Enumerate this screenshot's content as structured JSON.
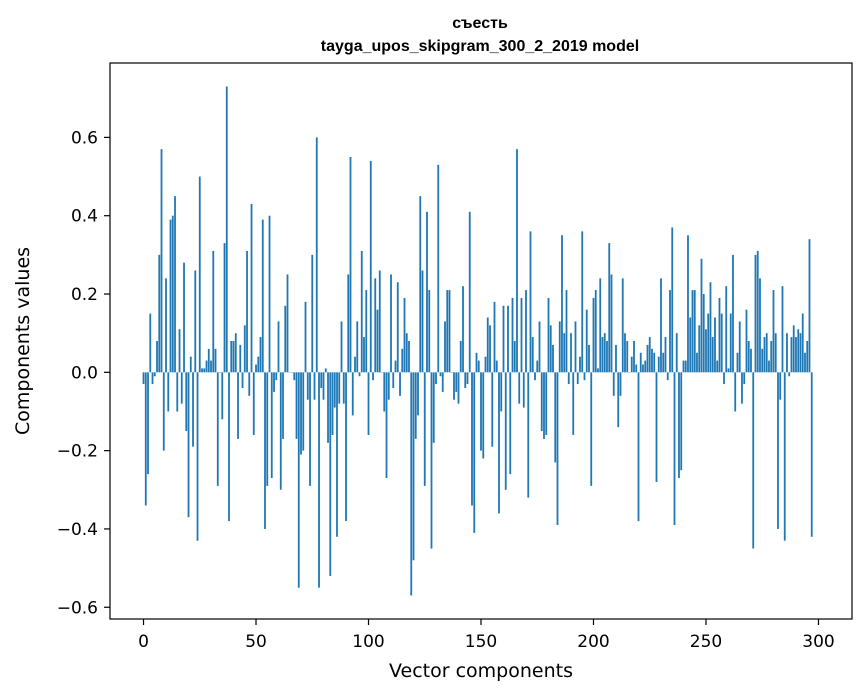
{
  "chart_data": {
    "type": "bar",
    "title": "съесть",
    "subtitle": "tayga_upos_skipgram_300_2_2019 model",
    "xlabel": "Vector components",
    "ylabel": "Components values",
    "xlim": [
      -14.9,
      314.9
    ],
    "ylim": [
      -0.63,
      0.79
    ],
    "xticks": [
      0,
      50,
      100,
      150,
      200,
      250,
      300
    ],
    "xtick_labels": [
      "0",
      "50",
      "100",
      "150",
      "200",
      "250",
      "300"
    ],
    "yticks": [
      -0.6,
      -0.4,
      -0.2,
      0.0,
      0.2,
      0.4,
      0.6
    ],
    "ytick_labels": [
      "−0.6",
      "−0.4",
      "−0.2",
      "0.0",
      "0.2",
      "0.4",
      "0.6"
    ],
    "grid": false,
    "bar_color": "#1f77b4",
    "values": [
      -0.03,
      -0.34,
      -0.26,
      0.15,
      -0.03,
      -0.01,
      0.08,
      0.3,
      0.57,
      -0.2,
      0.24,
      -0.1,
      0.39,
      0.4,
      0.45,
      -0.1,
      0.11,
      -0.08,
      0.28,
      -0.15,
      -0.37,
      0.04,
      -0.19,
      0.26,
      -0.43,
      0.5,
      0.01,
      0.01,
      0.03,
      0.06,
      0.03,
      0.31,
      0.06,
      -0.29,
      0.0,
      -0.12,
      0.33,
      0.73,
      -0.38,
      0.08,
      0.08,
      0.1,
      -0.17,
      0.07,
      -0.04,
      0.12,
      0.31,
      -0.06,
      0.43,
      -0.16,
      0.02,
      0.04,
      0.09,
      0.39,
      -0.4,
      -0.29,
      0.4,
      -0.27,
      -0.05,
      -0.02,
      0.13,
      -0.3,
      -0.17,
      0.17,
      0.25,
      0.0,
      0.0,
      -0.02,
      -0.17,
      -0.55,
      -0.21,
      -0.2,
      0.18,
      -0.07,
      -0.29,
      0.3,
      -0.07,
      0.6,
      -0.55,
      -0.04,
      -0.07,
      0.01,
      -0.18,
      -0.52,
      -0.16,
      -0.09,
      -0.42,
      -0.08,
      0.13,
      -0.08,
      -0.38,
      0.25,
      0.55,
      -0.11,
      0.04,
      0.13,
      -0.01,
      0.31,
      0.09,
      0.21,
      -0.16,
      0.54,
      -0.02,
      0.24,
      0.16,
      0.26,
      0.0,
      -0.1,
      -0.27,
      -0.07,
      0.25,
      -0.04,
      0.03,
      0.23,
      -0.06,
      0.06,
      0.19,
      0.1,
      0.08,
      -0.57,
      -0.48,
      -0.17,
      -0.11,
      0.45,
      0.26,
      -0.29,
      0.41,
      0.21,
      -0.45,
      -0.18,
      -0.03,
      0.53,
      -0.01,
      -0.05,
      0.13,
      0.21,
      0.21,
      0.0,
      -0.07,
      -0.05,
      -0.08,
      0.08,
      0.22,
      -0.04,
      -0.03,
      0.41,
      -0.34,
      -0.41,
      0.05,
      0.03,
      -0.2,
      -0.22,
      0.04,
      0.14,
      0.12,
      -0.19,
      0.18,
      0.03,
      -0.36,
      -0.1,
      0.17,
      -0.3,
      0.17,
      -0.26,
      0.19,
      0.08,
      0.57,
      -0.08,
      0.19,
      -0.09,
      0.21,
      -0.32,
      0.36,
      0.09,
      -0.02,
      0.03,
      0.13,
      -0.15,
      -0.17,
      -0.16,
      0.19,
      0.12,
      0.07,
      -0.23,
      -0.39,
      0.13,
      0.35,
      0.1,
      0.21,
      -0.03,
      0.1,
      -0.16,
      0.13,
      -0.03,
      0.04,
      0.36,
      -0.02,
      0.16,
      0.07,
      -0.29,
      0.19,
      0.21,
      0.01,
      0.24,
      0.09,
      0.1,
      0.08,
      0.33,
      0.25,
      -0.06,
      0.07,
      -0.14,
      -0.06,
      0.24,
      0.1,
      0.08,
      0.0,
      0.04,
      0.08,
      0.02,
      -0.38,
      0.05,
      0.02,
      0.03,
      0.07,
      0.09,
      0.06,
      0.05,
      -0.28,
      0.04,
      0.24,
      0.05,
      0.09,
      -0.02,
      0.21,
      0.37,
      -0.39,
      0.1,
      -0.27,
      -0.25,
      0.03,
      0.03,
      0.35,
      0.14,
      0.21,
      0.21,
      0.05,
      0.12,
      0.29,
      0.2,
      0.11,
      0.15,
      0.23,
      0.09,
      0.14,
      0.03,
      0.19,
      0.15,
      -0.03,
      0.22,
      0.01,
      0.15,
      0.3,
      -0.1,
      0.05,
      0.13,
      -0.08,
      -0.03,
      0.16,
      0.08,
      0.06,
      -0.45,
      0.3,
      0.31,
      0.24,
      0.06,
      0.09,
      0.1,
      0.03,
      0.08,
      0.21,
      0.1,
      -0.4,
      -0.07,
      0.22,
      -0.43,
      0.1,
      -0.01,
      0.09,
      0.12,
      0.09,
      0.11,
      0.1,
      0.15,
      0.05,
      0.08,
      0.34,
      -0.42
    ]
  }
}
